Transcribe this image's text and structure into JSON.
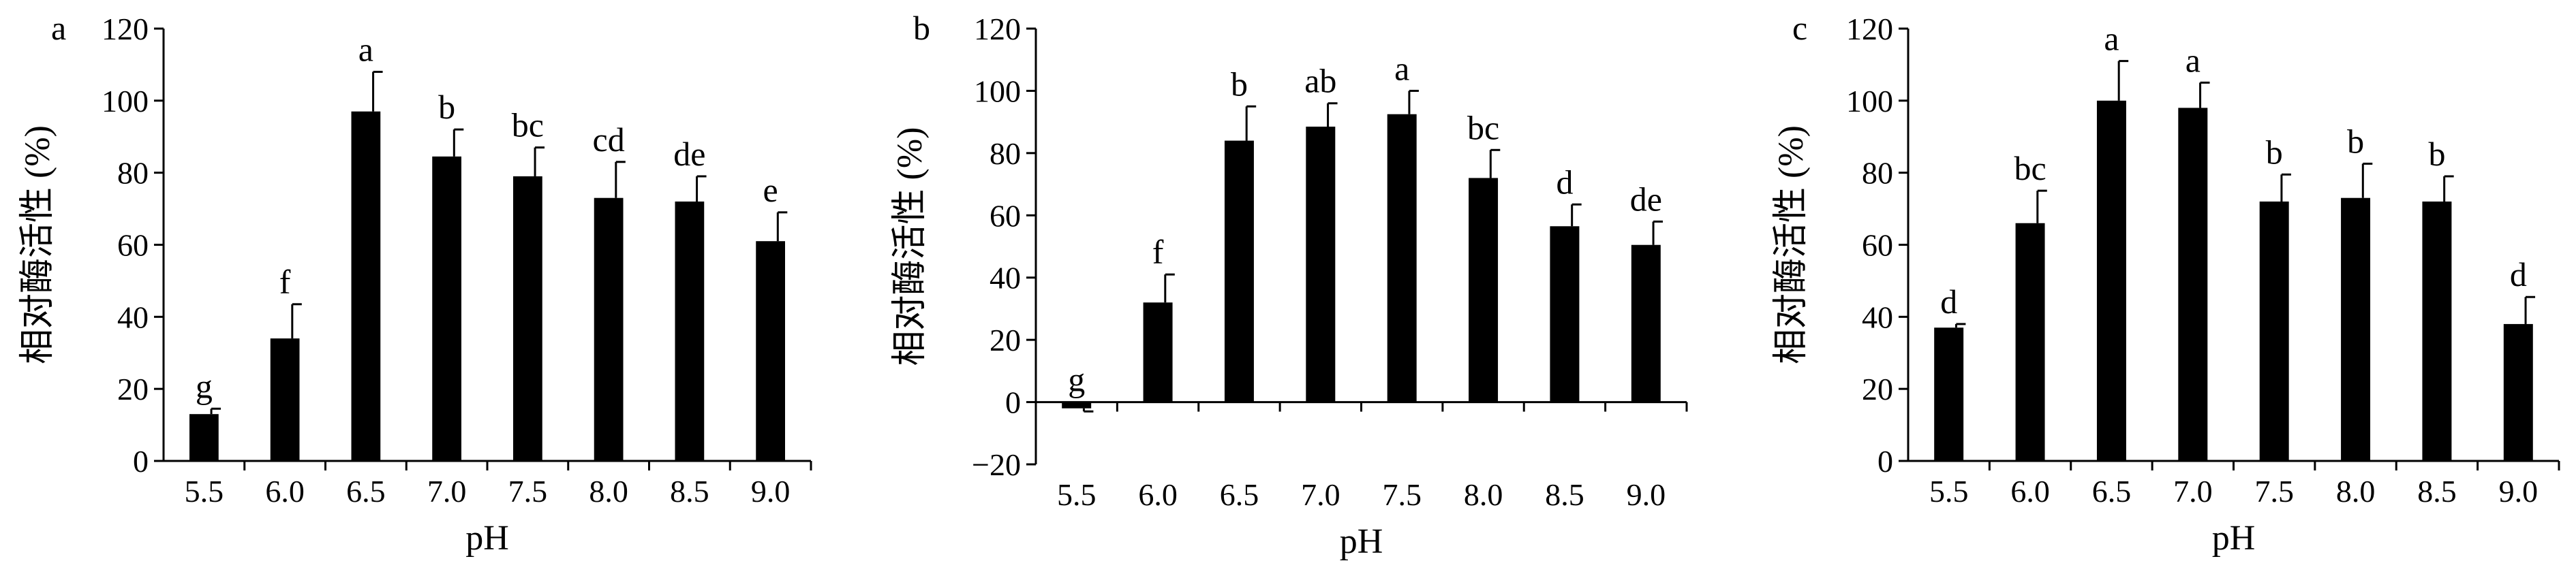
{
  "chart_data": [
    {
      "type": "bar",
      "panel": "a",
      "xlabel": "pH",
      "ylabel": "相对酶活性 (%)",
      "ylim": [
        0,
        120
      ],
      "yticks": [
        0,
        20,
        40,
        60,
        80,
        100,
        120
      ],
      "categories": [
        "5.5",
        "6.0",
        "6.5",
        "7.0",
        "7.5",
        "8.0",
        "8.5",
        "9.0"
      ],
      "values": [
        13,
        34,
        97,
        84.5,
        79,
        73,
        72,
        61
      ],
      "errors": [
        1.5,
        9.5,
        11,
        7.5,
        8,
        10,
        7,
        8
      ],
      "letters": [
        "g",
        "f",
        "a",
        "b",
        "bc",
        "cd",
        "de",
        "e"
      ],
      "grid": false
    },
    {
      "type": "bar",
      "panel": "b",
      "xlabel": "pH",
      "ylabel": "相对酶活性 (%)",
      "ylim": [
        -20,
        120
      ],
      "yticks": [
        -20,
        0,
        20,
        40,
        60,
        80,
        100,
        120
      ],
      "categories": [
        "5.5",
        "6.0",
        "6.5",
        "7.0",
        "7.5",
        "8.0",
        "8.5",
        "9.0"
      ],
      "values": [
        -2,
        32,
        84,
        88.5,
        92.5,
        72,
        56.5,
        50.5
      ],
      "errors": [
        1,
        9,
        11,
        7.5,
        7.5,
        9,
        7,
        7.5
      ],
      "letters": [
        "g",
        "f",
        "b",
        "ab",
        "a",
        "bc",
        "d",
        "de"
      ],
      "grid": false
    },
    {
      "type": "bar",
      "panel": "c",
      "xlabel": "pH",
      "ylabel": "相对酶活性 (%)",
      "ylim": [
        0,
        120
      ],
      "yticks": [
        0,
        20,
        40,
        60,
        80,
        100,
        120
      ],
      "categories": [
        "5.5",
        "6.0",
        "6.5",
        "7.0",
        "7.5",
        "8.0",
        "8.5",
        "9.0"
      ],
      "values": [
        37,
        66,
        100,
        98,
        72,
        73,
        72,
        38
      ],
      "errors": [
        1,
        9,
        11,
        7,
        7.5,
        9.5,
        7,
        7.5
      ],
      "letters": [
        "d",
        "bc",
        "a",
        "a",
        "b",
        "b",
        "b",
        "d"
      ],
      "grid": false
    }
  ]
}
